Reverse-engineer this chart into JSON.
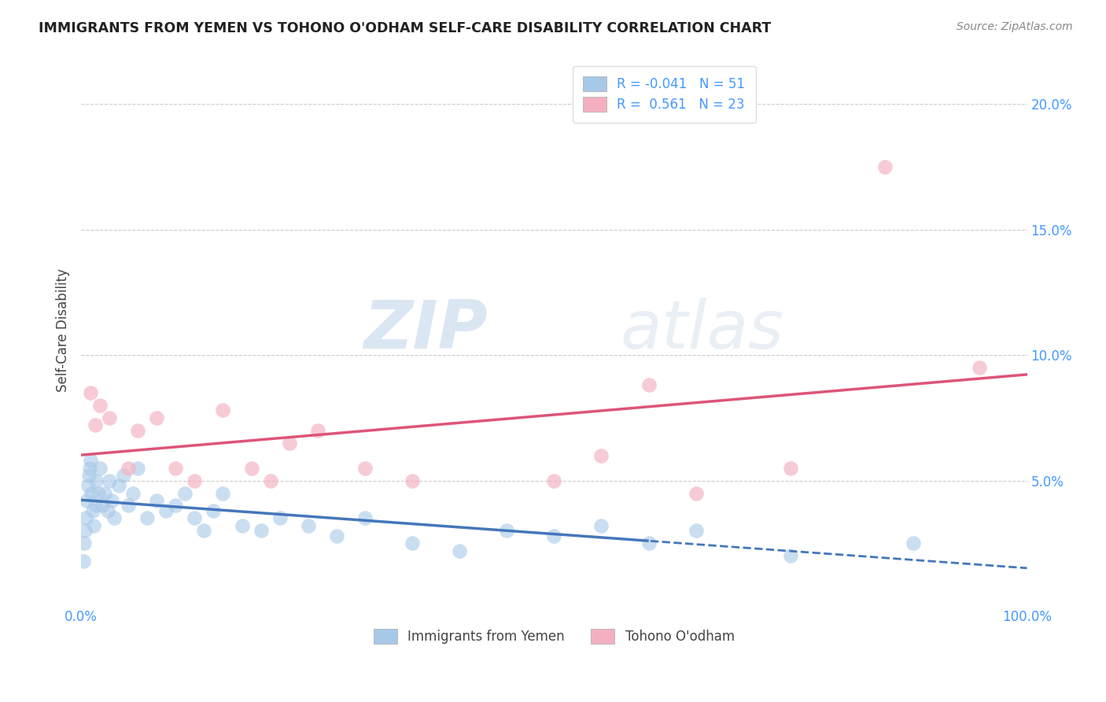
{
  "title": "IMMIGRANTS FROM YEMEN VS TOHONO O'ODHAM SELF-CARE DISABILITY CORRELATION CHART",
  "source": "Source: ZipAtlas.com",
  "ylabel": "Self-Care Disability",
  "legend_label_1": "Immigrants from Yemen",
  "legend_label_2": "Tohono O'odham",
  "r1": -0.041,
  "n1": 51,
  "r2": 0.561,
  "n2": 23,
  "color1": "#a8c8e8",
  "color2": "#f4b0c0",
  "line_color1": "#4477bb",
  "line_color2": "#dd5577",
  "background": "#ffffff",
  "title_color": "#222222",
  "source_color": "#888888",
  "axis_label_color": "#444444",
  "tick_color": "#4499ff",
  "scatter1_x": [
    0.2,
    0.3,
    0.4,
    0.5,
    0.6,
    0.7,
    0.8,
    0.9,
    1.0,
    1.1,
    1.2,
    1.3,
    1.5,
    1.6,
    1.8,
    2.0,
    2.2,
    2.5,
    2.8,
    3.0,
    3.2,
    3.5,
    4.0,
    4.5,
    5.0,
    5.5,
    6.0,
    7.0,
    8.0,
    9.0,
    10.0,
    11.0,
    12.0,
    13.0,
    14.0,
    15.0,
    17.0,
    19.0,
    21.0,
    24.0,
    27.0,
    30.0,
    35.0,
    40.0,
    45.0,
    50.0,
    55.0,
    60.0,
    65.0,
    75.0,
    88.0
  ],
  "scatter1_y": [
    1.8,
    2.5,
    3.0,
    3.5,
    4.2,
    4.8,
    5.2,
    5.5,
    5.8,
    4.5,
    3.8,
    3.2,
    4.0,
    5.0,
    4.5,
    5.5,
    4.0,
    4.5,
    3.8,
    5.0,
    4.2,
    3.5,
    4.8,
    5.2,
    4.0,
    4.5,
    5.5,
    3.5,
    4.2,
    3.8,
    4.0,
    4.5,
    3.5,
    3.0,
    3.8,
    4.5,
    3.2,
    3.0,
    3.5,
    3.2,
    2.8,
    3.5,
    2.5,
    2.2,
    3.0,
    2.8,
    3.2,
    2.5,
    3.0,
    2.0,
    2.5
  ],
  "scatter2_x": [
    1.0,
    1.5,
    2.0,
    3.0,
    5.0,
    6.0,
    8.0,
    10.0,
    12.0,
    15.0,
    18.0,
    20.0,
    22.0,
    25.0,
    30.0,
    35.0,
    50.0,
    55.0,
    60.0,
    65.0,
    75.0,
    85.0,
    95.0
  ],
  "scatter2_y": [
    8.5,
    7.2,
    8.0,
    7.5,
    5.5,
    7.0,
    7.5,
    5.5,
    5.0,
    7.8,
    5.5,
    5.0,
    6.5,
    7.0,
    5.5,
    5.0,
    5.0,
    6.0,
    8.8,
    4.5,
    5.5,
    17.5,
    9.5
  ],
  "xlim": [
    0,
    100
  ],
  "ylim": [
    0,
    22
  ],
  "xticks": [
    0,
    10,
    20,
    30,
    40,
    50,
    60,
    70,
    80,
    90,
    100
  ],
  "yticks": [
    0,
    5,
    10,
    15,
    20
  ],
  "ytick_labels": [
    "",
    "5.0%",
    "10.0%",
    "15.0%",
    "20.0%"
  ],
  "xtick_labels": [
    "0.0%",
    "",
    "",
    "",
    "",
    "",
    "",
    "",
    "",
    "",
    "100.0%"
  ],
  "watermark_zip": "ZIP",
  "watermark_atlas": "atlas",
  "figsize": [
    14.06,
    8.92
  ],
  "dpi": 100
}
